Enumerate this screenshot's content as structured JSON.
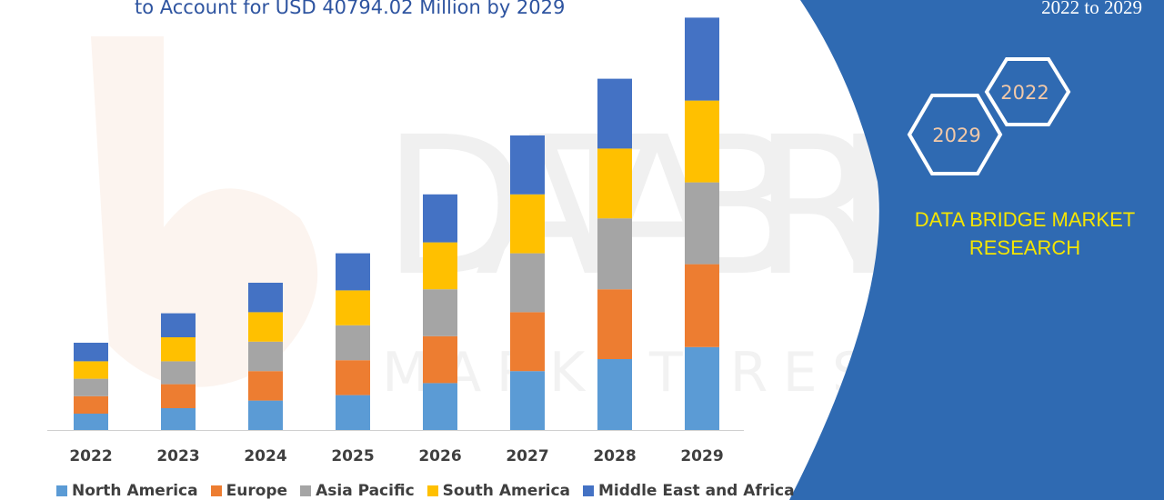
{
  "header": {
    "title": "to Account for USD 40794.02 Million by 2029",
    "range": "2022 to 2029"
  },
  "panel": {
    "hex_left": "2029",
    "hex_right": "2022",
    "brand": "DATA BRIDGE MARKET RESEARCH",
    "bg_color": "#2f6ab2",
    "brand_color": "#f5e500"
  },
  "watermark": {
    "line1": "DATABRIDGE",
    "line2": "MARKET RESEARCH"
  },
  "chart_data": {
    "type": "bar",
    "stacked": true,
    "categories": [
      "2022",
      "2023",
      "2024",
      "2025",
      "2026",
      "2027",
      "2028",
      "2029"
    ],
    "series": [
      {
        "name": "North America",
        "color": "#5b9bd5",
        "values": [
          15,
          20,
          27,
          32,
          43,
          54,
          65,
          76
        ]
      },
      {
        "name": "Europe",
        "color": "#ed7d31",
        "values": [
          16,
          22,
          27,
          32,
          43,
          54,
          64,
          76
        ]
      },
      {
        "name": "Asia Pacific",
        "color": "#a5a5a5",
        "values": [
          16,
          21,
          27,
          32,
          43,
          54,
          65,
          75
        ]
      },
      {
        "name": "South America",
        "color": "#ffc000",
        "values": [
          16,
          22,
          27,
          32,
          43,
          54,
          64,
          75
        ]
      },
      {
        "name": "Middle East and Africa",
        "color": "#4472c4",
        "values": [
          17,
          22,
          27,
          34,
          44,
          54,
          64,
          76
        ]
      }
    ],
    "ylim": [
      0,
      380
    ],
    "grid": false,
    "legend_position": "bottom"
  }
}
